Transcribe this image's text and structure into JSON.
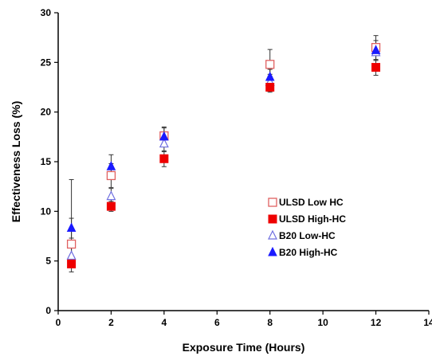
{
  "chart_data": {
    "type": "scatter",
    "title": "",
    "xlabel": "Exposure Time (Hours)",
    "ylabel": "Effectiveness Loss (%)",
    "xlim": [
      0,
      14
    ],
    "ylim": [
      0,
      30
    ],
    "xticks": [
      "0",
      "2",
      "4",
      "6",
      "8",
      "10",
      "12",
      "14"
    ],
    "yticks": [
      "0",
      "5",
      "10",
      "15",
      "20",
      "25",
      "30"
    ],
    "grid": false,
    "legend_position": "right",
    "series": [
      {
        "name": "ULSD Low HC",
        "marker": "square-open",
        "color": "#e06060",
        "x": [
          0.5,
          2,
          4,
          8,
          12
        ],
        "y": [
          6.7,
          13.6,
          17.6,
          24.8,
          26.5
        ],
        "err_low": [
          1.5,
          1.2,
          0.8,
          1.0,
          0.6
        ],
        "err_high": [
          6.5,
          1.2,
          0.8,
          1.5,
          1.2
        ]
      },
      {
        "name": "ULSD High-HC",
        "marker": "square-filled",
        "color": "#ee0000",
        "x": [
          0.5,
          2,
          4,
          8,
          12
        ],
        "y": [
          4.7,
          10.5,
          15.3,
          22.5,
          24.5
        ],
        "err_low": [
          0.8,
          0.5,
          0.8,
          0.5,
          0.8
        ],
        "err_high": [
          0.8,
          0.5,
          0.8,
          0.5,
          0.8
        ]
      },
      {
        "name": "B20 Low-HC",
        "marker": "triangle-open",
        "color": "#7070e0",
        "x": [
          0.5,
          2,
          4,
          8,
          12
        ],
        "y": [
          5.5,
          11.5,
          16.8,
          23.0,
          26.0
        ],
        "err_low": [
          0.8,
          0.8,
          0.8,
          0.6,
          0.8
        ],
        "err_high": [
          0.8,
          0.8,
          0.8,
          0.6,
          0.8
        ]
      },
      {
        "name": "B20 High-HC",
        "marker": "triangle-filled",
        "color": "#1a1aff",
        "x": [
          0.5,
          2,
          4,
          8,
          12
        ],
        "y": [
          8.3,
          14.5,
          17.5,
          23.5,
          26.2
        ],
        "err_low": [
          1.0,
          1.2,
          1.0,
          0.8,
          1.0
        ],
        "err_high": [
          1.0,
          1.2,
          1.0,
          0.8,
          1.0
        ]
      }
    ]
  }
}
